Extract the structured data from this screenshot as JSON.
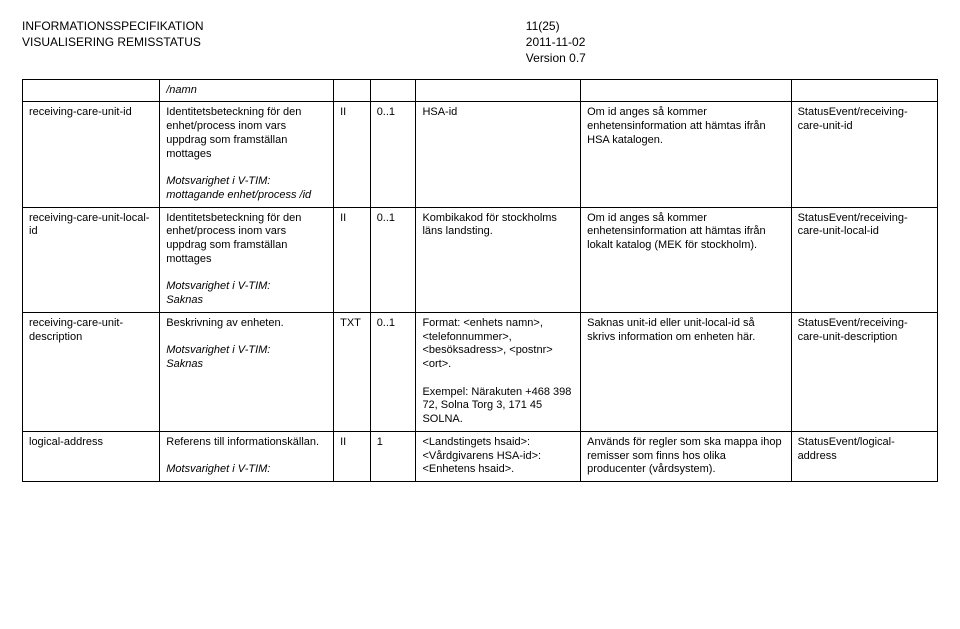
{
  "header": {
    "title_line1": "INFORMATIONSSPECIFIKATION",
    "title_line2": "VISUALISERING REMISSTATUS",
    "page_num": "11(25)",
    "date": "2011-11-02",
    "version": "Version 0.7"
  },
  "rows": [
    {
      "c0": "",
      "c1_main": "",
      "c1_note": "/namn",
      "c2": "",
      "c3": "",
      "c4": "",
      "c5": "",
      "c6": ""
    },
    {
      "c0": "receiving-care-unit-id",
      "c1_main": "Identitetsbeteckning för den enhet/process inom vars uppdrag som framställan mottages",
      "c1_note_label": "Motsvarighet i V-TIM:",
      "c1_note": "mottagande enhet/process /id",
      "c2": "II",
      "c3": "0..1",
      "c4": "HSA-id",
      "c5": "Om id anges så kommer enhetensinformation att hämtas ifrån HSA katalogen.",
      "c6": "StatusEvent/receiving-care-unit-id"
    },
    {
      "c0": "receiving-care-unit-local-id",
      "c1_main": "Identitetsbeteckning för den enhet/process inom vars uppdrag som framställan mottages",
      "c1_note_label": "Motsvarighet i V-TIM:",
      "c1_note": "Saknas",
      "c2": "II",
      "c3": "0..1",
      "c4": "Kombikakod för stockholms läns landsting.",
      "c5": "Om id anges så kommer enhetensinformation att hämtas ifrån lokalt katalog (MEK för stockholm).",
      "c6": "StatusEvent/receiving-care-unit-local-id"
    },
    {
      "c0": "receiving-care-unit-description",
      "c1_main": "Beskrivning av enheten.",
      "c1_note_label": "Motsvarighet i V-TIM:",
      "c1_note": "Saknas",
      "c2": "TXT",
      "c3": "0..1",
      "c4_p1": "Format: <enhets namn>, <telefonnummer>, <besöksadress>, <postnr> <ort>.",
      "c4_p2": "Exempel: Närakuten +468 398 72, Solna Torg 3, 171 45 SOLNA.",
      "c5": "Saknas unit-id eller unit-local-id så skrivs information om enheten här.",
      "c6": "StatusEvent/receiving-care-unit-description"
    },
    {
      "c0": "logical-address",
      "c1_main": "Referens till informationskällan.",
      "c1_note_label": "Motsvarighet i V-TIM:",
      "c1_note": "",
      "c2": "II",
      "c3": "1",
      "c4": "<Landstingets hsaid>:<Vårdgivarens HSA-id>:<Enhetens hsaid>.",
      "c5": "Används för regler som ska mappa ihop remisser som finns hos olika producenter (vårdsystem).",
      "c6": "StatusEvent/logical-address"
    }
  ]
}
